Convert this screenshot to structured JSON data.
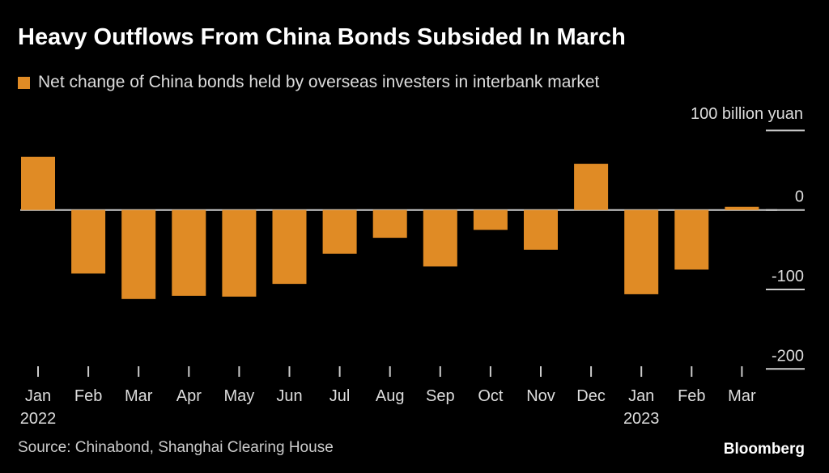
{
  "chart_data": {
    "type": "bar",
    "title": "Heavy Outflows From China Bonds Subsided In March",
    "legend": [
      {
        "name": "Net change of China bonds held by overseas investers in interbank market",
        "color": "#e08b25"
      }
    ],
    "unit_label": "100 billion yuan",
    "categories": [
      "Jan",
      "Feb",
      "Mar",
      "Apr",
      "May",
      "Jun",
      "Jul",
      "Aug",
      "Sep",
      "Oct",
      "Nov",
      "Dec",
      "Jan",
      "Feb",
      "Mar"
    ],
    "year_labels": {
      "0": "2022",
      "12": "2023"
    },
    "values": [
      67,
      -80,
      -112,
      -108,
      -109,
      -93,
      -55,
      -35,
      -71,
      -25,
      -50,
      58,
      -106,
      -75,
      4
    ],
    "ylim": [
      -200,
      100
    ],
    "yticks": [
      100,
      0,
      -100,
      -200
    ],
    "ytick_labels": [
      "100 billion yuan",
      "0",
      "-100",
      "-200"
    ],
    "source": "Source: Chinabond, Shanghai Clearing House",
    "brand": "Bloomberg"
  }
}
